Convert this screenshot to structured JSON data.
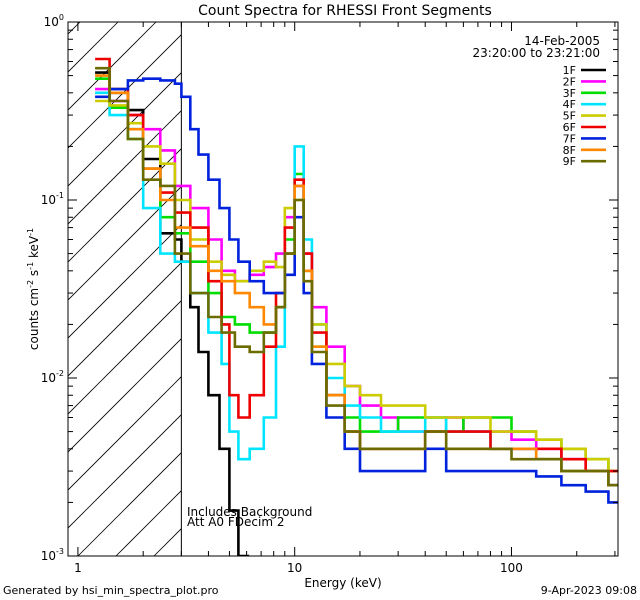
{
  "chart_data": {
    "type": "line",
    "title": "Count Spectra for RHESSI Front Segments",
    "xlabel": "Energy (keV)",
    "ylabel_main": "counts cm",
    "ylabel_sup1": "-2",
    "ylabel_mid1": " s",
    "ylabel_sup2": "-1",
    "ylabel_mid2": " keV",
    "ylabel_sup3": "-1",
    "xscale": "log",
    "yscale": "log",
    "xlim": [
      0.9,
      310
    ],
    "ylim": [
      0.001,
      1.0
    ],
    "x_ticks": [
      {
        "value": 1,
        "label": "1"
      },
      {
        "value": 10,
        "label": "10"
      },
      {
        "value": 100,
        "label": "100"
      }
    ],
    "y_ticks": [
      {
        "value": 1.0,
        "base": "10",
        "exp": "0"
      },
      {
        "value": 0.1,
        "base": "10",
        "exp": "-1"
      },
      {
        "value": 0.01,
        "base": "10",
        "exp": "-2"
      },
      {
        "value": 0.001,
        "base": "10",
        "exp": "-3"
      }
    ],
    "date": "14-Feb-2005",
    "time_range": "23:20:00 to 23:21:00",
    "annotation_line1": "Includes Background",
    "annotation_line2": "Att A0  FDecim 2",
    "footer_left": "Generated by hsi_min_spectra_plot.pro",
    "footer_right": "9-Apr-2023 09:08",
    "hatched_region_xmax": 3.0,
    "series": [
      {
        "name": "1F",
        "color": "#000000",
        "points": [
          [
            1.2,
            0.52
          ],
          [
            1.4,
            0.4
          ],
          [
            1.7,
            0.32
          ],
          [
            2.0,
            0.17
          ],
          [
            2.4,
            0.065
          ],
          [
            2.8,
            0.06
          ],
          [
            3.0,
            0.045
          ],
          [
            3.3,
            0.025
          ],
          [
            3.6,
            0.014
          ],
          [
            4.0,
            0.008
          ],
          [
            4.5,
            0.004
          ],
          [
            5.0,
            0.0018
          ],
          [
            5.5,
            0.001
          ]
        ]
      },
      {
        "name": "2F",
        "color": "#ff00ff",
        "points": [
          [
            1.2,
            0.42
          ],
          [
            1.4,
            0.36
          ],
          [
            1.7,
            0.3
          ],
          [
            2.0,
            0.25
          ],
          [
            2.4,
            0.19
          ],
          [
            2.8,
            0.12
          ],
          [
            3.3,
            0.09
          ],
          [
            4.0,
            0.06
          ],
          [
            4.6,
            0.04
          ],
          [
            5.3,
            0.035
          ],
          [
            6.2,
            0.038
          ],
          [
            7.2,
            0.042
          ],
          [
            8.2,
            0.05
          ],
          [
            9.0,
            0.08
          ],
          [
            10.0,
            0.12
          ],
          [
            11.0,
            0.05
          ],
          [
            12.0,
            0.025
          ],
          [
            14.0,
            0.015
          ],
          [
            17.0,
            0.009
          ],
          [
            20.0,
            0.007
          ],
          [
            25.0,
            0.006
          ],
          [
            30.0,
            0.005
          ],
          [
            40.0,
            0.005
          ],
          [
            50.0,
            0.006
          ],
          [
            60.0,
            0.005
          ],
          [
            80.0,
            0.005
          ],
          [
            100.0,
            0.0045
          ],
          [
            130.0,
            0.004
          ],
          [
            170.0,
            0.0035
          ],
          [
            220.0,
            0.003
          ],
          [
            280.0,
            0.0025
          ]
        ]
      },
      {
        "name": "3F",
        "color": "#00dd00",
        "points": [
          [
            1.2,
            0.48
          ],
          [
            1.4,
            0.33
          ],
          [
            1.7,
            0.22
          ],
          [
            2.0,
            0.15
          ],
          [
            2.4,
            0.08
          ],
          [
            2.8,
            0.065
          ],
          [
            3.3,
            0.045
          ],
          [
            4.0,
            0.03
          ],
          [
            4.6,
            0.022
          ],
          [
            5.3,
            0.02
          ],
          [
            6.2,
            0.018
          ],
          [
            7.2,
            0.018
          ],
          [
            8.2,
            0.025
          ],
          [
            9.0,
            0.06
          ],
          [
            10.0,
            0.14
          ],
          [
            11.0,
            0.04
          ],
          [
            12.0,
            0.015
          ],
          [
            14.0,
            0.008
          ],
          [
            17.0,
            0.006
          ],
          [
            20.0,
            0.005
          ],
          [
            25.0,
            0.005
          ],
          [
            30.0,
            0.006
          ],
          [
            40.0,
            0.006
          ],
          [
            50.0,
            0.005
          ],
          [
            60.0,
            0.006
          ],
          [
            80.0,
            0.006
          ],
          [
            100.0,
            0.005
          ],
          [
            130.0,
            0.0045
          ],
          [
            170.0,
            0.004
          ],
          [
            220.0,
            0.0035
          ],
          [
            280.0,
            0.003
          ]
        ]
      },
      {
        "name": "4F",
        "color": "#00e5ff",
        "points": [
          [
            1.2,
            0.4
          ],
          [
            1.4,
            0.3
          ],
          [
            1.7,
            0.25
          ],
          [
            2.0,
            0.09
          ],
          [
            2.4,
            0.05
          ],
          [
            2.8,
            0.045
          ],
          [
            3.3,
            0.03
          ],
          [
            4.0,
            0.018
          ],
          [
            4.6,
            0.012
          ],
          [
            5.0,
            0.005
          ],
          [
            5.5,
            0.0035
          ],
          [
            6.2,
            0.004
          ],
          [
            7.2,
            0.006
          ],
          [
            8.2,
            0.015
          ],
          [
            9.0,
            0.05
          ],
          [
            10.0,
            0.2
          ],
          [
            11.0,
            0.06
          ],
          [
            12.0,
            0.02
          ],
          [
            14.0,
            0.01
          ],
          [
            17.0,
            0.007
          ],
          [
            20.0,
            0.006
          ],
          [
            25.0,
            0.005
          ],
          [
            30.0,
            0.005
          ],
          [
            40.0,
            0.006
          ],
          [
            50.0,
            0.005
          ],
          [
            60.0,
            0.005
          ],
          [
            80.0,
            0.004
          ],
          [
            100.0,
            0.004
          ],
          [
            130.0,
            0.0035
          ],
          [
            170.0,
            0.003
          ],
          [
            220.0,
            0.003
          ],
          [
            280.0,
            0.0025
          ]
        ]
      },
      {
        "name": "5F",
        "color": "#cccc00",
        "points": [
          [
            1.2,
            0.36
          ],
          [
            1.4,
            0.34
          ],
          [
            1.7,
            0.27
          ],
          [
            2.0,
            0.2
          ],
          [
            2.4,
            0.16
          ],
          [
            2.8,
            0.1
          ],
          [
            3.3,
            0.06
          ],
          [
            4.0,
            0.045
          ],
          [
            4.6,
            0.038
          ],
          [
            5.3,
            0.035
          ],
          [
            6.2,
            0.04
          ],
          [
            7.2,
            0.045
          ],
          [
            8.2,
            0.042
          ],
          [
            9.0,
            0.09
          ],
          [
            10.0,
            0.1
          ],
          [
            11.0,
            0.04
          ],
          [
            12.0,
            0.02
          ],
          [
            14.0,
            0.012
          ],
          [
            17.0,
            0.009
          ],
          [
            20.0,
            0.008
          ],
          [
            25.0,
            0.007
          ],
          [
            30.0,
            0.007
          ],
          [
            40.0,
            0.006
          ],
          [
            50.0,
            0.006
          ],
          [
            60.0,
            0.006
          ],
          [
            80.0,
            0.005
          ],
          [
            100.0,
            0.005
          ],
          [
            130.0,
            0.0045
          ],
          [
            170.0,
            0.004
          ],
          [
            220.0,
            0.0035
          ],
          [
            280.0,
            0.003
          ]
        ]
      },
      {
        "name": "6F",
        "color": "#ee0000",
        "points": [
          [
            1.2,
            0.62
          ],
          [
            1.4,
            0.42
          ],
          [
            1.7,
            0.3
          ],
          [
            2.0,
            0.15
          ],
          [
            2.4,
            0.11
          ],
          [
            2.8,
            0.085
          ],
          [
            3.3,
            0.07
          ],
          [
            4.0,
            0.035
          ],
          [
            4.6,
            0.02
          ],
          [
            5.0,
            0.008
          ],
          [
            5.5,
            0.006
          ],
          [
            6.2,
            0.008
          ],
          [
            7.2,
            0.015
          ],
          [
            8.2,
            0.03
          ],
          [
            9.0,
            0.07
          ],
          [
            10.0,
            0.13
          ],
          [
            11.0,
            0.05
          ],
          [
            12.0,
            0.018
          ],
          [
            14.0,
            0.008
          ],
          [
            17.0,
            0.005
          ],
          [
            20.0,
            0.004
          ],
          [
            25.0,
            0.004
          ],
          [
            30.0,
            0.004
          ],
          [
            40.0,
            0.005
          ],
          [
            50.0,
            0.005
          ],
          [
            60.0,
            0.005
          ],
          [
            80.0,
            0.004
          ],
          [
            100.0,
            0.004
          ],
          [
            130.0,
            0.004
          ],
          [
            170.0,
            0.0035
          ],
          [
            220.0,
            0.003
          ],
          [
            280.0,
            0.003
          ]
        ]
      },
      {
        "name": "7F",
        "color": "#0022dd",
        "points": [
          [
            1.2,
            0.38
          ],
          [
            1.4,
            0.42
          ],
          [
            1.7,
            0.47
          ],
          [
            2.0,
            0.48
          ],
          [
            2.4,
            0.47
          ],
          [
            2.8,
            0.45
          ],
          [
            3.0,
            0.38
          ],
          [
            3.3,
            0.25
          ],
          [
            3.6,
            0.18
          ],
          [
            4.0,
            0.13
          ],
          [
            4.5,
            0.09
          ],
          [
            5.0,
            0.06
          ],
          [
            5.5,
            0.045
          ],
          [
            6.2,
            0.035
          ],
          [
            7.2,
            0.03
          ],
          [
            8.2,
            0.03
          ],
          [
            9.0,
            0.038
          ],
          [
            10.0,
            0.08
          ],
          [
            11.0,
            0.03
          ],
          [
            12.0,
            0.012
          ],
          [
            14.0,
            0.006
          ],
          [
            17.0,
            0.004
          ],
          [
            20.0,
            0.003
          ],
          [
            25.0,
            0.003
          ],
          [
            30.0,
            0.003
          ],
          [
            40.0,
            0.004
          ],
          [
            50.0,
            0.003
          ],
          [
            60.0,
            0.003
          ],
          [
            80.0,
            0.003
          ],
          [
            100.0,
            0.003
          ],
          [
            130.0,
            0.0028
          ],
          [
            170.0,
            0.0025
          ],
          [
            220.0,
            0.0023
          ],
          [
            280.0,
            0.002
          ]
        ]
      },
      {
        "name": "8F",
        "color": "#ff8800",
        "points": [
          [
            1.2,
            0.5
          ],
          [
            1.4,
            0.4
          ],
          [
            1.7,
            0.25
          ],
          [
            2.0,
            0.15
          ],
          [
            2.4,
            0.1
          ],
          [
            2.8,
            0.07
          ],
          [
            3.3,
            0.055
          ],
          [
            4.0,
            0.04
          ],
          [
            4.6,
            0.035
          ],
          [
            5.3,
            0.03
          ],
          [
            6.2,
            0.025
          ],
          [
            7.2,
            0.02
          ],
          [
            8.2,
            0.025
          ],
          [
            9.0,
            0.05
          ],
          [
            10.0,
            0.12
          ],
          [
            11.0,
            0.04
          ],
          [
            12.0,
            0.015
          ],
          [
            14.0,
            0.008
          ],
          [
            17.0,
            0.005
          ],
          [
            20.0,
            0.004
          ],
          [
            25.0,
            0.004
          ],
          [
            30.0,
            0.004
          ],
          [
            40.0,
            0.005
          ],
          [
            50.0,
            0.004
          ],
          [
            60.0,
            0.004
          ],
          [
            80.0,
            0.004
          ],
          [
            100.0,
            0.004
          ],
          [
            130.0,
            0.0035
          ],
          [
            170.0,
            0.003
          ],
          [
            220.0,
            0.003
          ],
          [
            280.0,
            0.0025
          ]
        ]
      },
      {
        "name": "9F",
        "color": "#6b6b00",
        "points": [
          [
            1.2,
            0.55
          ],
          [
            1.4,
            0.36
          ],
          [
            1.7,
            0.22
          ],
          [
            2.0,
            0.13
          ],
          [
            2.4,
            0.12
          ],
          [
            2.8,
            0.05
          ],
          [
            3.3,
            0.03
          ],
          [
            4.0,
            0.022
          ],
          [
            4.6,
            0.018
          ],
          [
            5.3,
            0.015
          ],
          [
            6.2,
            0.014
          ],
          [
            7.2,
            0.018
          ],
          [
            8.2,
            0.025
          ],
          [
            9.0,
            0.05
          ],
          [
            10.0,
            0.1
          ],
          [
            11.0,
            0.035
          ],
          [
            12.0,
            0.014
          ],
          [
            14.0,
            0.007
          ],
          [
            17.0,
            0.005
          ],
          [
            20.0,
            0.004
          ],
          [
            25.0,
            0.004
          ],
          [
            30.0,
            0.004
          ],
          [
            40.0,
            0.005
          ],
          [
            50.0,
            0.004
          ],
          [
            60.0,
            0.004
          ],
          [
            80.0,
            0.004
          ],
          [
            100.0,
            0.0035
          ],
          [
            130.0,
            0.0035
          ],
          [
            170.0,
            0.003
          ],
          [
            220.0,
            0.003
          ],
          [
            280.0,
            0.0025
          ]
        ]
      }
    ]
  }
}
